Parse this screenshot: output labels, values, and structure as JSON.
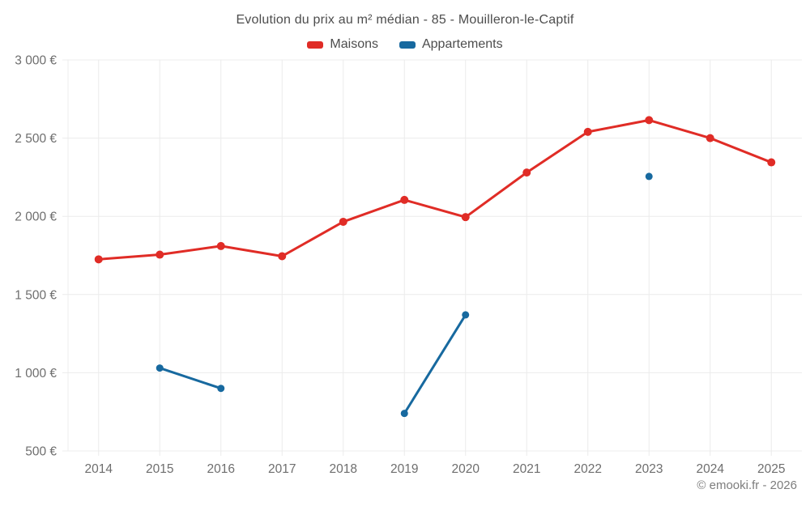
{
  "chart_data": {
    "type": "line",
    "title": "Evolution du prix au m² médian - 85 - Mouilleron-le-Captif",
    "categories": [
      "2014",
      "2015",
      "2016",
      "2017",
      "2018",
      "2019",
      "2020",
      "2021",
      "2022",
      "2023",
      "2024",
      "2025"
    ],
    "series": [
      {
        "name": "Maisons",
        "color": "#e02c26",
        "point_radius": 5,
        "line_width": 3,
        "values": [
          1725,
          1755,
          1810,
          1745,
          1965,
          2105,
          1995,
          2280,
          2540,
          2615,
          2500,
          2345
        ]
      },
      {
        "name": "Appartements",
        "color": "#17699f",
        "point_radius": 4.5,
        "line_width": 3,
        "values": [
          null,
          1030,
          900,
          null,
          null,
          740,
          1370,
          null,
          null,
          2255,
          null,
          null
        ]
      }
    ],
    "xlabel": "",
    "ylabel": "",
    "ylim": [
      500,
      3000
    ],
    "y_ticks": [
      {
        "value": 500,
        "label": "500 €"
      },
      {
        "value": 1000,
        "label": "1 000 €"
      },
      {
        "value": 1500,
        "label": "1 500 €"
      },
      {
        "value": 2000,
        "label": "2 000 €"
      },
      {
        "value": 2500,
        "label": "2 500 €"
      },
      {
        "value": 3000,
        "label": "3 000 €"
      }
    ],
    "grid": true,
    "legend_position": "top"
  },
  "styles": {
    "background": "#ffffff",
    "grid_color": "#ececec",
    "axis_tick_label_color": "#6e6e6e",
    "title_color": "#4d4d4d",
    "legend_text_color": "#4d4d4d",
    "footer_color": "#7d7d7d"
  },
  "footer": {
    "credit": "© emooki.fr - 2026"
  }
}
